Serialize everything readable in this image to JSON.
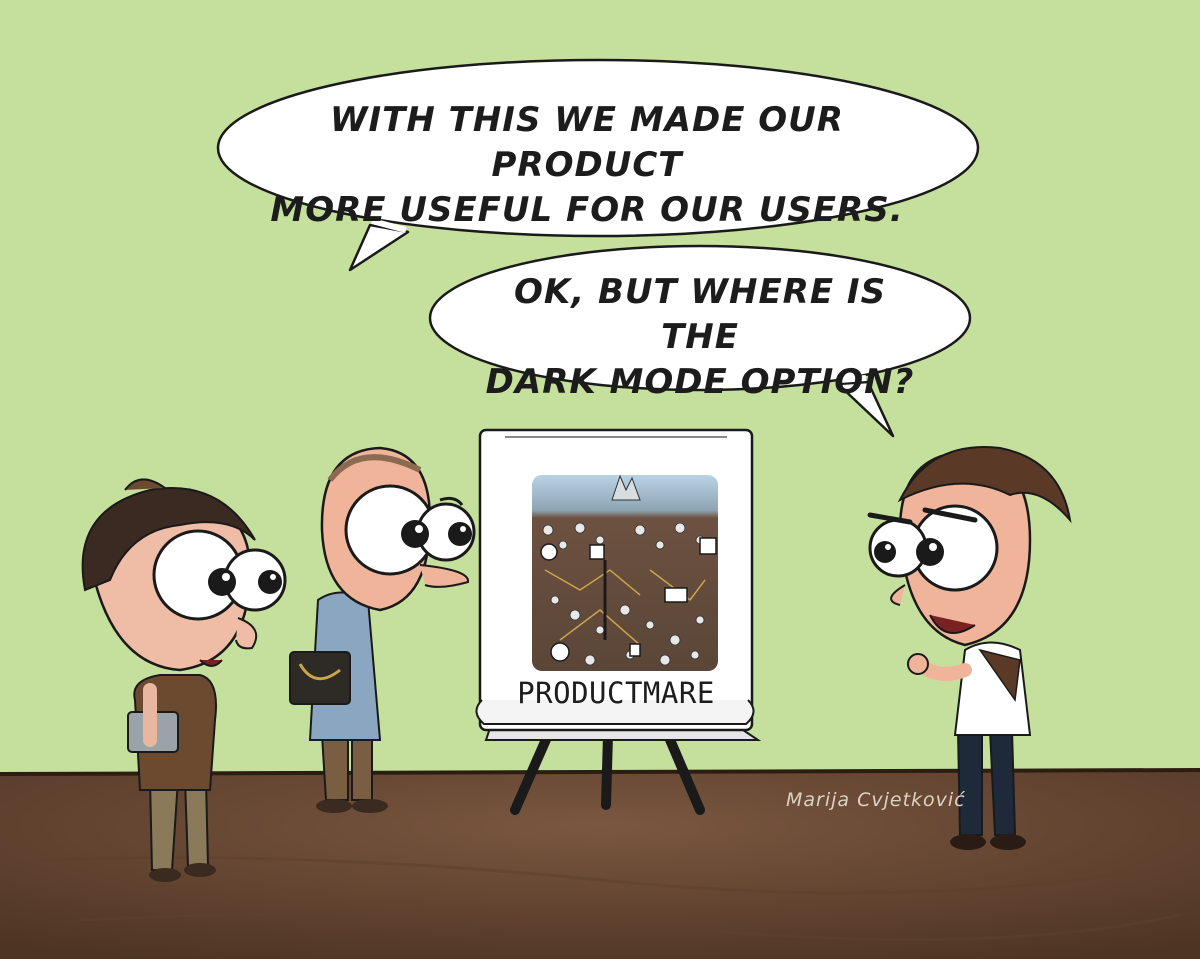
{
  "colors": {
    "background": "#c5df9c",
    "floor": "#6a4a35",
    "bubble": "#ffffff",
    "text": "#1c1c1c"
  },
  "bubbles": {
    "first": {
      "line1": "WITH THIS WE MADE OUR PRODUCT",
      "line2": "MORE USEFUL FOR OUR USERS."
    },
    "second": {
      "line1": "OK, BUT WHERE IS THE",
      "line2": "DARK MODE OPTION?"
    }
  },
  "flipchart": {
    "label": "PRODUCTMARE"
  },
  "signature": "Marija Cvjetković"
}
